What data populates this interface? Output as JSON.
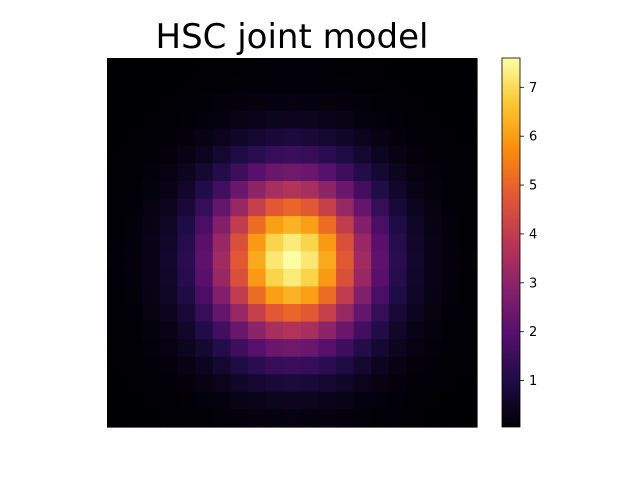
{
  "chart_data": {
    "type": "heatmap",
    "title": "HSC joint model",
    "xlabel": "",
    "ylabel": "",
    "axes_visible": false,
    "grid": false,
    "colormap": "inferno",
    "colorbar": {
      "range": [
        0.05,
        7.6
      ],
      "ticks": [
        1,
        2,
        3,
        4,
        5,
        6,
        7
      ],
      "tick_labels": [
        "1",
        "2",
        "3",
        "4",
        "5",
        "6",
        "7"
      ]
    },
    "grid_size": [
      21,
      21
    ],
    "peak": {
      "value": 7.6,
      "row": 11,
      "col": 10
    },
    "profile_sigma": {
      "rows": 3.3,
      "cols": 3.1
    },
    "background": 0.05
  }
}
